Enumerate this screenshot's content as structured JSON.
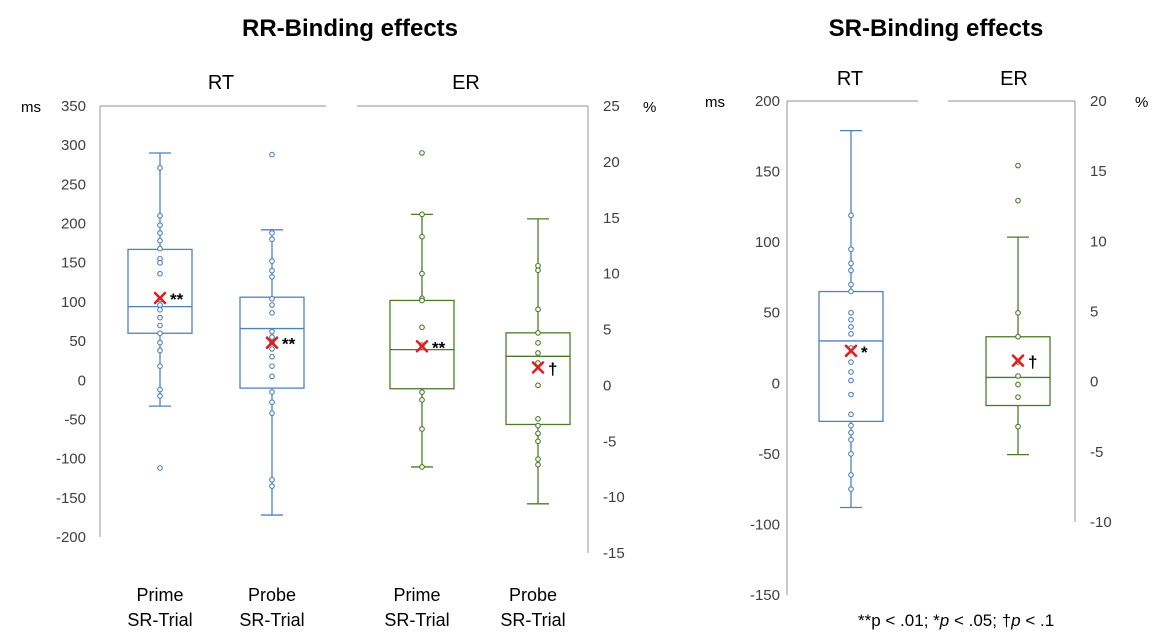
{
  "footnote": {
    "part1": "**p < .01; *",
    "p1": "p",
    "part2": " < .05; ",
    "dagger": "†",
    "p2": "p",
    "part3": " < .1"
  },
  "chart_data": [
    {
      "type": "box",
      "title": "RR-Binding effects",
      "sections": [
        {
          "label": "RT",
          "unit": "ms",
          "axis_side": "left",
          "ylim": [
            -200,
            350
          ],
          "ticks": [
            "350",
            "300",
            "250",
            "200",
            "150",
            "100",
            "50",
            "0",
            "-50",
            "-100",
            "-150",
            "-200"
          ],
          "color": "#4f81bd",
          "boxes": [
            {
              "category_lines": [
                "Prime",
                "SR-Trial"
              ],
              "whisker_low": -33,
              "q1": 60,
              "median": 94,
              "q3": 167,
              "whisker_high": 290,
              "mean": 105,
              "sig": "**",
              "points": [
                271,
                210,
                198,
                188,
                178,
                168,
                155,
                150,
                136,
                103,
                96,
                90,
                80,
                70,
                60,
                48,
                38,
                18,
                -12,
                -20,
                -112
              ]
            },
            {
              "category_lines": [
                "Probe",
                "SR-Trial"
              ],
              "whisker_low": -172,
              "q1": -10,
              "median": 66,
              "q3": 106,
              "whisker_high": 192,
              "mean": 48,
              "sig": "**",
              "points": [
                288,
                188,
                180,
                152,
                140,
                132,
                104,
                96,
                86,
                62,
                55,
                48,
                40,
                30,
                18,
                5,
                -15,
                -28,
                -42,
                -127,
                -135
              ]
            }
          ]
        },
        {
          "label": "ER",
          "unit": "%",
          "axis_side": "right",
          "ylim": [
            -15,
            25
          ],
          "ticks": [
            "25",
            "20",
            "15",
            "10",
            "5",
            "0",
            "-5",
            "-10",
            "-15"
          ],
          "color": "#4e7a2a",
          "boxes": [
            {
              "category_lines": [
                "Prime",
                "SR-Trial"
              ],
              "whisker_low": -7.3,
              "q1": -0.3,
              "median": 3.2,
              "q3": 7.6,
              "whisker_high": 15.3,
              "mean": 3.5,
              "sig": "**",
              "points": [
                20.8,
                15.3,
                13.3,
                10.0,
                7.8,
                7.6,
                5.2,
                3.6,
                -0.6,
                -1.3,
                -3.9,
                -7.3
              ]
            },
            {
              "category_lines": [
                "Probe",
                "SR-Trial"
              ],
              "whisker_low": -10.6,
              "q1": -3.5,
              "median": 2.6,
              "q3": 4.7,
              "whisker_high": 14.9,
              "mean": 1.6,
              "sig": "†",
              "points": [
                10.7,
                10.3,
                6.8,
                4.7,
                3.8,
                2.9,
                2.0,
                0,
                -3.0,
                -3.6,
                -4.3,
                -5.0,
                -6.6,
                -7.1
              ]
            }
          ]
        }
      ]
    },
    {
      "type": "box",
      "title": "SR-Binding effects",
      "sections": [
        {
          "label": "RT",
          "unit": "ms",
          "axis_side": "left",
          "ylim": [
            -150,
            200
          ],
          "ticks": [
            "200",
            "150",
            "100",
            "50",
            "0",
            "-50",
            "-100",
            "-150"
          ],
          "color": "#4f81bd",
          "boxes": [
            {
              "category_lines": [],
              "whisker_low": -88,
              "q1": -27,
              "median": 30,
              "q3": 65,
              "whisker_high": 179,
              "mean": 23,
              "sig": "*",
              "points": [
                119,
                95,
                85,
                80,
                70,
                65,
                50,
                45,
                40,
                35,
                25,
                15,
                8,
                2,
                -8,
                -22,
                -30,
                -35,
                -40,
                -50,
                -65,
                -75
              ]
            }
          ]
        },
        {
          "label": "ER",
          "unit": "%",
          "axis_side": "right",
          "ylim": [
            -10,
            20
          ],
          "ticks": [
            "20",
            "15",
            "10",
            "5",
            "0",
            "-5",
            "-10"
          ],
          "color": "#4e7a2a",
          "boxes": [
            {
              "category_lines": [],
              "whisker_low": -5.2,
              "q1": -1.7,
              "median": 0.3,
              "q3": 3.2,
              "whisker_high": 10.3,
              "mean": 1.5,
              "sig": "†",
              "points": [
                15.4,
                12.9,
                4.9,
                3.2,
                1.4,
                0.4,
                -0.2,
                -1.1,
                -3.2
              ]
            }
          ]
        }
      ]
    }
  ]
}
